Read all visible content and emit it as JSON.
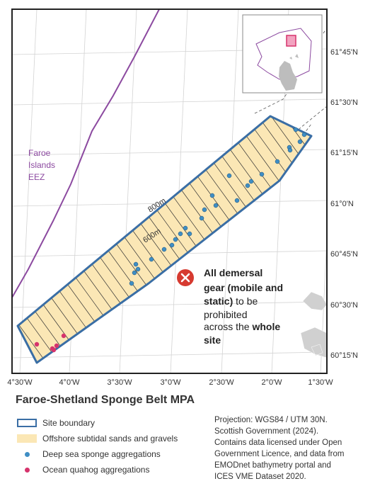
{
  "map": {
    "title": "Faroe-Shetland Sponge Belt MPA",
    "eez_label_lines": [
      "Faroe",
      "Islands",
      "EEZ"
    ],
    "contour_labels": [
      "800m",
      "600m"
    ],
    "callout": {
      "segments": [
        {
          "text": "All demersal",
          "bold": true
        },
        {
          "text": "gear (mobile and",
          "bold": true
        },
        {
          "text": "static)",
          "bold": true,
          "inline_next": " to be"
        },
        {
          "text": "prohibited",
          "bold": false
        },
        {
          "text": "across the ",
          "bold": false,
          "inline_next_bold": "whole"
        },
        {
          "text": "site",
          "bold": true
        }
      ]
    },
    "lat_labels": [
      "61°45'N",
      "61°30'N",
      "61°15'N",
      "61°0'N",
      "60°45'N",
      "60°30'N",
      "60°15'N"
    ],
    "lon_labels": [
      "4°30'W",
      "4°0'W",
      "3°30'W",
      "3°0'W",
      "2°30'W",
      "2°0'W",
      "1°30'W"
    ],
    "colors": {
      "boundary": "#3a6ea5",
      "sands": "#fbe7b5",
      "sponge": "#3f8ec4",
      "quahog": "#d6336c",
      "eez": "#8c4aa0",
      "grid": "#d3d3d3",
      "land": "#d0d0d0"
    }
  },
  "legend": {
    "items": [
      {
        "label": "Site boundary"
      },
      {
        "label": "Offshore subtidal sands and gravels"
      },
      {
        "label": "Deep sea sponge aggregations"
      },
      {
        "label": "Ocean quahog aggregations"
      }
    ]
  },
  "credits": [
    "Projection: WGS84 / UTM 30N.",
    "Scottish Government (2024).",
    "Contains data licensed under Open",
    "Government Licence, and data from",
    "EMODnet bathymetry portal and",
    "ICES VME Dataset 2020."
  ]
}
